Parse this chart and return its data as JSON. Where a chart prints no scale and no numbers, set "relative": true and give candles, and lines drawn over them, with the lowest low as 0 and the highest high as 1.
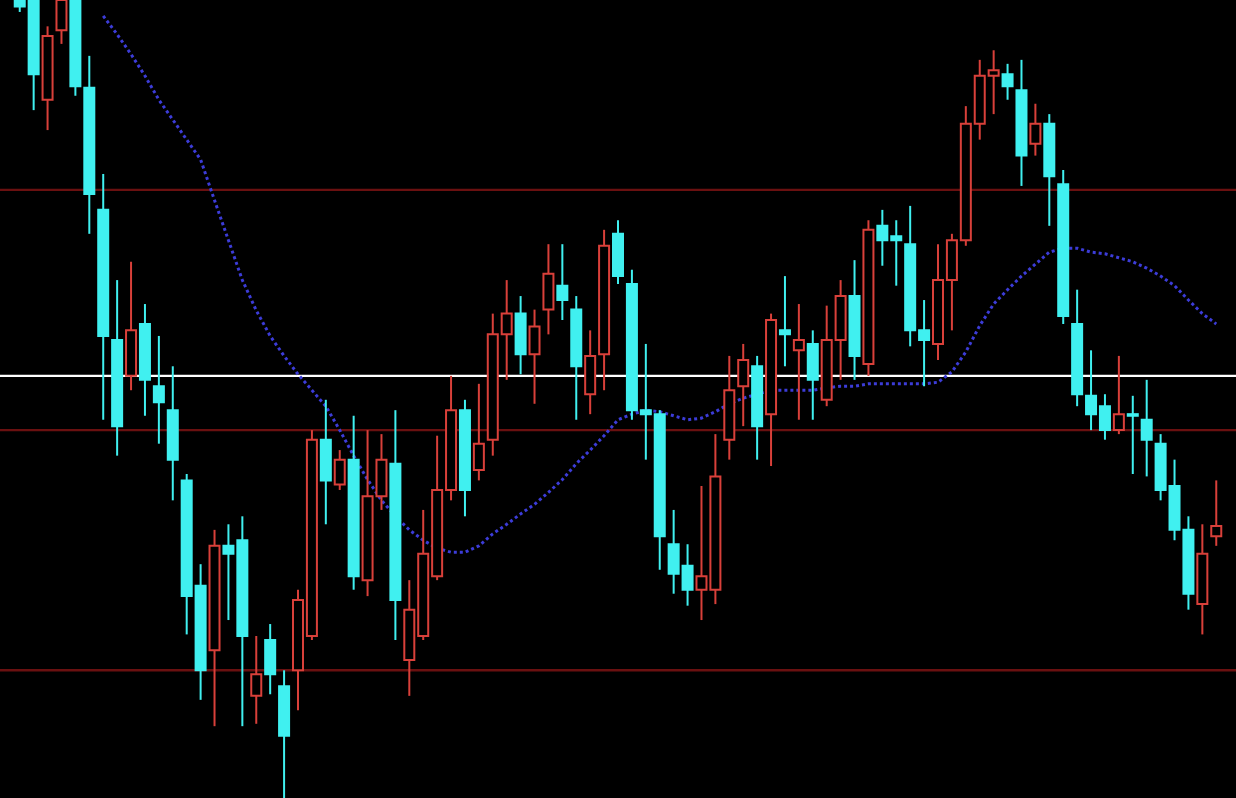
{
  "chart_data": {
    "type": "candlestick",
    "relative": true,
    "categories": [
      null,
      null,
      null,
      null,
      null,
      null,
      null,
      null,
      null,
      null,
      null,
      null,
      null,
      null,
      null,
      null,
      null,
      null,
      null,
      null,
      null,
      null,
      null,
      null,
      null,
      null,
      null,
      null,
      null,
      null,
      null,
      null,
      null,
      null,
      null,
      null,
      null,
      null,
      null,
      null,
      null,
      null,
      null,
      null,
      null,
      null,
      null,
      null,
      null,
      null,
      null,
      null,
      null,
      null,
      null,
      null,
      null,
      null,
      null,
      null,
      null,
      null,
      null,
      null,
      null,
      null,
      null,
      null,
      null,
      null,
      null,
      null,
      null,
      null,
      null,
      null,
      null,
      null,
      null,
      null,
      null,
      null,
      null,
      null,
      null,
      null,
      null
    ],
    "ohlc": [
      [
        1.0,
        1.0,
        0.985,
        0.992
      ],
      [
        1.0,
        1.0,
        0.862,
        0.907
      ],
      [
        0.875,
        0.967,
        0.837,
        0.955
      ],
      [
        0.962,
        1.0,
        0.945,
        1.0
      ],
      [
        1.0,
        1.0,
        0.88,
        0.892
      ],
      [
        0.89,
        0.93,
        0.707,
        0.757
      ],
      [
        0.737,
        0.782,
        0.474,
        0.579
      ],
      [
        0.574,
        0.649,
        0.429,
        0.466
      ],
      [
        0.529,
        0.672,
        0.511,
        0.586
      ],
      [
        0.594,
        0.619,
        0.479,
        0.524
      ],
      [
        0.516,
        0.579,
        0.444,
        0.496
      ],
      [
        0.486,
        0.541,
        0.373,
        0.424
      ],
      [
        0.398,
        0.406,
        0.205,
        0.253
      ],
      [
        0.266,
        0.293,
        0.123,
        0.16
      ],
      [
        0.185,
        0.336,
        0.09,
        0.316
      ],
      [
        0.316,
        0.343,
        0.223,
        0.306
      ],
      [
        0.323,
        0.353,
        0.09,
        0.203
      ],
      [
        0.128,
        0.203,
        0.093,
        0.155
      ],
      [
        0.198,
        0.218,
        0.13,
        0.155
      ],
      [
        0.14,
        0.16,
        0.0,
        0.078
      ],
      [
        0.16,
        0.261,
        0.11,
        0.248
      ],
      [
        0.203,
        0.461,
        0.198,
        0.449
      ],
      [
        0.449,
        0.499,
        0.343,
        0.398
      ],
      [
        0.393,
        0.436,
        0.386,
        0.424
      ],
      [
        0.424,
        0.479,
        0.261,
        0.278
      ],
      [
        0.273,
        0.461,
        0.253,
        0.378
      ],
      [
        0.378,
        0.456,
        0.361,
        0.424
      ],
      [
        0.419,
        0.486,
        0.198,
        0.248
      ],
      [
        0.173,
        0.273,
        0.128,
        0.236
      ],
      [
        0.203,
        0.361,
        0.198,
        0.306
      ],
      [
        0.278,
        0.454,
        0.273,
        0.386
      ],
      [
        0.386,
        0.529,
        0.373,
        0.486
      ],
      [
        0.486,
        0.499,
        0.353,
        0.386
      ],
      [
        0.411,
        0.519,
        0.398,
        0.444
      ],
      [
        0.449,
        0.607,
        0.429,
        0.581
      ],
      [
        0.581,
        0.649,
        0.524,
        0.607
      ],
      [
        0.607,
        0.629,
        0.531,
        0.556
      ],
      [
        0.556,
        0.612,
        0.494,
        0.591
      ],
      [
        0.612,
        0.694,
        0.581,
        0.657
      ],
      [
        0.642,
        0.694,
        0.599,
        0.624
      ],
      [
        0.612,
        0.629,
        0.474,
        0.541
      ],
      [
        0.506,
        0.586,
        0.481,
        0.554
      ],
      [
        0.556,
        0.712,
        0.511,
        0.692
      ],
      [
        0.707,
        0.724,
        0.644,
        0.654
      ],
      [
        0.644,
        0.662,
        0.474,
        0.486
      ],
      [
        0.486,
        0.569,
        0.424,
        0.481
      ],
      [
        0.481,
        0.486,
        0.286,
        0.328
      ],
      [
        0.318,
        0.361,
        0.256,
        0.281
      ],
      [
        0.291,
        0.318,
        0.241,
        0.261
      ],
      [
        0.261,
        0.391,
        0.223,
        0.278
      ],
      [
        0.261,
        0.456,
        0.243,
        0.403
      ],
      [
        0.449,
        0.554,
        0.424,
        0.511
      ],
      [
        0.516,
        0.569,
        0.466,
        0.549
      ],
      [
        0.541,
        0.554,
        0.424,
        0.466
      ],
      [
        0.481,
        0.607,
        0.416,
        0.599
      ],
      [
        0.586,
        0.654,
        0.541,
        0.581
      ],
      [
        0.561,
        0.619,
        0.474,
        0.574
      ],
      [
        0.569,
        0.586,
        0.474,
        0.524
      ],
      [
        0.499,
        0.617,
        0.491,
        0.574
      ],
      [
        0.574,
        0.649,
        0.524,
        0.629
      ],
      [
        0.629,
        0.674,
        0.524,
        0.554
      ],
      [
        0.544,
        0.724,
        0.529,
        0.712
      ],
      [
        0.717,
        0.737,
        0.667,
        0.699
      ],
      [
        0.704,
        0.724,
        0.642,
        0.699
      ],
      [
        0.694,
        0.742,
        0.566,
        0.586
      ],
      [
        0.586,
        0.624,
        0.516,
        0.574
      ],
      [
        0.569,
        0.694,
        0.549,
        0.649
      ],
      [
        0.649,
        0.707,
        0.586,
        0.699
      ],
      [
        0.699,
        0.867,
        0.692,
        0.845
      ],
      [
        0.845,
        0.925,
        0.825,
        0.905
      ],
      [
        0.905,
        0.937,
        0.857,
        0.912
      ],
      [
        0.907,
        0.92,
        0.875,
        0.892
      ],
      [
        0.887,
        0.925,
        0.767,
        0.805
      ],
      [
        0.82,
        0.87,
        0.805,
        0.845
      ],
      [
        0.845,
        0.857,
        0.717,
        0.779
      ],
      [
        0.769,
        0.787,
        0.594,
        0.604
      ],
      [
        0.594,
        0.637,
        0.491,
        0.506
      ],
      [
        0.504,
        0.561,
        0.461,
        0.481
      ],
      [
        0.491,
        0.506,
        0.449,
        0.461
      ],
      [
        0.461,
        0.554,
        0.456,
        0.481
      ],
      [
        0.481,
        0.504,
        0.406,
        0.479
      ],
      [
        0.474,
        0.524,
        0.403,
        0.449
      ],
      [
        0.444,
        0.456,
        0.373,
        0.386
      ],
      [
        0.391,
        0.424,
        0.323,
        0.336
      ],
      [
        0.336,
        0.353,
        0.236,
        0.256
      ],
      [
        0.243,
        0.343,
        0.205,
        0.306
      ],
      [
        0.328,
        0.398,
        0.316,
        0.341
      ]
    ],
    "colors": [
      "#40f0f0",
      "#40f0f0",
      "#d9403a",
      "#d9403a",
      "#40f0f0",
      "#40f0f0",
      "#40f0f0",
      "#40f0f0",
      "#d9403a",
      "#40f0f0",
      "#40f0f0",
      "#40f0f0",
      "#40f0f0",
      "#40f0f0",
      "#d9403a",
      "#40f0f0",
      "#40f0f0",
      "#d9403a",
      "#40f0f0",
      "#40f0f0",
      "#d9403a",
      "#d9403a",
      "#40f0f0",
      "#d9403a",
      "#40f0f0",
      "#d9403a",
      "#d9403a",
      "#40f0f0",
      "#d9403a",
      "#d9403a",
      "#d9403a",
      "#d9403a",
      "#40f0f0",
      "#d9403a",
      "#d9403a",
      "#d9403a",
      "#40f0f0",
      "#d9403a",
      "#d9403a",
      "#40f0f0",
      "#40f0f0",
      "#d9403a",
      "#d9403a",
      "#40f0f0",
      "#40f0f0",
      "#40f0f0",
      "#40f0f0",
      "#40f0f0",
      "#40f0f0",
      "#d9403a",
      "#d9403a",
      "#d9403a",
      "#d9403a",
      "#40f0f0",
      "#d9403a",
      "#40f0f0",
      "#d9403a",
      "#40f0f0",
      "#d9403a",
      "#d9403a",
      "#40f0f0",
      "#d9403a",
      "#40f0f0",
      "#40f0f0",
      "#40f0f0",
      "#40f0f0",
      "#d9403a",
      "#d9403a",
      "#d9403a",
      "#d9403a",
      "#d9403a",
      "#40f0f0",
      "#40f0f0",
      "#d9403a",
      "#40f0f0",
      "#40f0f0",
      "#40f0f0",
      "#40f0f0",
      "#40f0f0",
      "#d9403a",
      "#40f0f0",
      "#40f0f0",
      "#40f0f0",
      "#40f0f0",
      "#40f0f0",
      "#d9403a",
      "#d9403a"
    ],
    "series": [
      {
        "type": "line",
        "color": "#3c3cd8",
        "line_style": "dotted",
        "values": [
          null,
          null,
          null,
          null,
          null,
          null,
          0.98,
          0.957,
          0.932,
          0.905,
          0.875,
          0.85,
          0.825,
          0.8,
          0.749,
          0.699,
          0.649,
          0.611,
          0.579,
          0.554,
          0.531,
          0.511,
          0.491,
          0.461,
          0.429,
          0.399,
          0.373,
          0.353,
          0.336,
          0.323,
          0.313,
          0.308,
          0.308,
          0.316,
          0.331,
          0.343,
          0.356,
          0.368,
          0.383,
          0.399,
          0.419,
          0.436,
          0.454,
          0.474,
          0.481,
          0.486,
          0.484,
          0.479,
          0.474,
          0.476,
          0.484,
          0.494,
          0.501,
          0.506,
          0.511,
          0.511,
          0.511,
          0.511,
          0.514,
          0.516,
          0.516,
          0.519,
          0.519,
          0.519,
          0.519,
          0.519,
          0.521,
          0.534,
          0.559,
          0.592,
          0.619,
          0.637,
          0.654,
          0.669,
          0.684,
          0.689,
          0.689,
          0.684,
          0.682,
          0.677,
          0.672,
          0.664,
          0.654,
          0.642,
          0.624,
          0.607,
          0.594
        ]
      }
    ],
    "ref_lines": [
      {
        "axis": "y",
        "value": 0.762,
        "color": "#6a1010"
      },
      {
        "axis": "y",
        "value": 0.529,
        "color": "#ffffff"
      },
      {
        "axis": "y",
        "value": 0.461,
        "color": "#6a1010"
      },
      {
        "axis": "y",
        "value": 0.16,
        "color": "#6a1010"
      }
    ]
  }
}
